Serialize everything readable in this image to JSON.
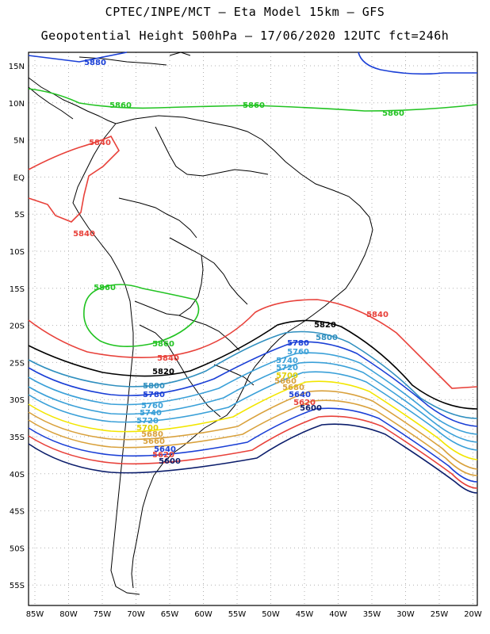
{
  "header": {
    "line1": "CPTEC/INPE/MCT –  Eta Model 15km – GFS",
    "line2": "Geopotential Height 500hPa – 17/06/2020 12UTC fct=246h"
  },
  "axes": {
    "lon_labels": [
      "85W",
      "80W",
      "75W",
      "70W",
      "65W",
      "60W",
      "55W",
      "50W",
      "45W",
      "40W",
      "35W",
      "30W",
      "25W",
      "20W"
    ],
    "lat_labels": [
      "15N",
      "10N",
      "5N",
      "EQ",
      "5S",
      "10S",
      "15S",
      "20S",
      "25S",
      "30S",
      "35S",
      "40S",
      "45S",
      "50S",
      "55S"
    ]
  },
  "contours": [
    {
      "value": "5880",
      "color": "#1a3fd6"
    },
    {
      "value": "5860",
      "color": "#22c322"
    },
    {
      "value": "5840",
      "color": "#e8413a"
    },
    {
      "value": "5820",
      "color": "#000000"
    },
    {
      "value": "5800",
      "color": "#2f8fbf"
    },
    {
      "value": "5780",
      "color": "#1a3fd6"
    },
    {
      "value": "5760",
      "color": "#3aa0d8"
    },
    {
      "value": "5740",
      "color": "#3aa0d8"
    },
    {
      "value": "5720",
      "color": "#3aa0d8"
    },
    {
      "value": "5700",
      "color": "#f2e600"
    },
    {
      "value": "5680",
      "color": "#d9a13c"
    },
    {
      "value": "5660",
      "color": "#d9a13c"
    },
    {
      "value": "5640",
      "color": "#1a3fd6"
    },
    {
      "value": "5620",
      "color": "#e8413a"
    },
    {
      "value": "5600",
      "color": "#0b1d6b"
    }
  ]
}
